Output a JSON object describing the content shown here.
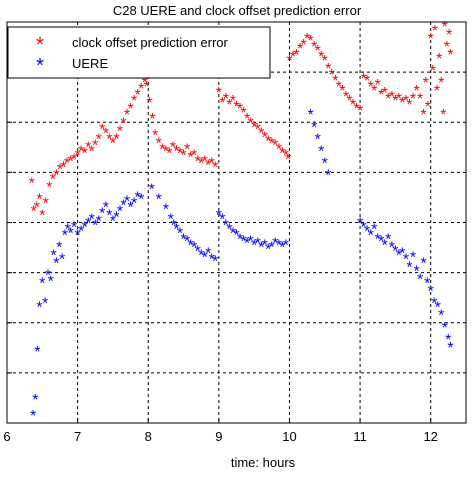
{
  "chart_data": {
    "type": "scatter",
    "title": "C28 UERE and clock offset prediction error",
    "xlabel": "time: hours",
    "ylabel": "",
    "xlim": [
      6,
      12.5
    ],
    "x_ticks": [
      "6",
      "7",
      "8",
      "9",
      "10",
      "11",
      "12"
    ],
    "y_gridlines": 8,
    "grid": true,
    "legend_position": "top-left",
    "marker": "*",
    "series": [
      {
        "name": "clock offset prediction error",
        "color": "#ff0000",
        "points": [
          [
            6.35,
            6.0
          ],
          [
            6.38,
            5.3
          ],
          [
            6.42,
            5.4
          ],
          [
            6.46,
            5.6
          ],
          [
            6.5,
            5.2
          ],
          [
            6.55,
            5.5
          ],
          [
            6.6,
            5.9
          ],
          [
            6.65,
            6.1
          ],
          [
            6.7,
            6.2
          ],
          [
            6.75,
            6.35
          ],
          [
            6.8,
            6.4
          ],
          [
            6.85,
            6.5
          ],
          [
            6.9,
            6.55
          ],
          [
            6.95,
            6.6
          ],
          [
            7.0,
            6.7
          ],
          [
            7.05,
            6.8
          ],
          [
            7.1,
            6.75
          ],
          [
            7.15,
            6.9
          ],
          [
            7.2,
            6.8
          ],
          [
            7.25,
            6.95
          ],
          [
            7.3,
            7.1
          ],
          [
            7.35,
            7.35
          ],
          [
            7.4,
            7.25
          ],
          [
            7.45,
            7.1
          ],
          [
            7.5,
            7.0
          ],
          [
            7.55,
            7.1
          ],
          [
            7.6,
            7.3
          ],
          [
            7.65,
            7.5
          ],
          [
            7.7,
            7.7
          ],
          [
            7.75,
            7.85
          ],
          [
            7.8,
            8.05
          ],
          [
            7.85,
            8.2
          ],
          [
            7.9,
            8.35
          ],
          [
            7.95,
            8.5
          ],
          [
            7.98,
            8.4
          ],
          [
            8.02,
            8.0
          ],
          [
            8.06,
            7.6
          ],
          [
            8.1,
            7.2
          ],
          [
            8.15,
            7.0
          ],
          [
            8.2,
            6.85
          ],
          [
            8.25,
            6.8
          ],
          [
            8.3,
            6.75
          ],
          [
            8.35,
            6.9
          ],
          [
            8.4,
            6.8
          ],
          [
            8.45,
            6.75
          ],
          [
            8.5,
            6.7
          ],
          [
            8.55,
            6.85
          ],
          [
            8.6,
            6.65
          ],
          [
            8.65,
            6.7
          ],
          [
            8.7,
            6.55
          ],
          [
            8.75,
            6.5
          ],
          [
            8.8,
            6.55
          ],
          [
            8.85,
            6.45
          ],
          [
            8.9,
            6.5
          ],
          [
            8.95,
            6.4
          ],
          [
            9.0,
            8.25
          ],
          [
            9.05,
            8.0
          ],
          [
            9.1,
            8.1
          ],
          [
            9.15,
            7.95
          ],
          [
            9.2,
            8.05
          ],
          [
            9.25,
            7.9
          ],
          [
            9.3,
            7.85
          ],
          [
            9.35,
            7.75
          ],
          [
            9.4,
            7.6
          ],
          [
            9.45,
            7.5
          ],
          [
            9.5,
            7.4
          ],
          [
            9.55,
            7.35
          ],
          [
            9.6,
            7.25
          ],
          [
            9.65,
            7.15
          ],
          [
            9.7,
            7.05
          ],
          [
            9.75,
            7.0
          ],
          [
            9.8,
            6.95
          ],
          [
            9.85,
            6.85
          ],
          [
            9.9,
            6.75
          ],
          [
            9.95,
            6.7
          ],
          [
            9.98,
            6.6
          ],
          [
            10.0,
            9.05
          ],
          [
            10.05,
            9.15
          ],
          [
            10.1,
            9.2
          ],
          [
            10.15,
            9.35
          ],
          [
            10.2,
            9.45
          ],
          [
            10.25,
            9.6
          ],
          [
            10.3,
            9.55
          ],
          [
            10.35,
            9.4
          ],
          [
            10.4,
            9.3
          ],
          [
            10.45,
            9.15
          ],
          [
            10.5,
            9.05
          ],
          [
            10.55,
            8.85
          ],
          [
            10.6,
            8.7
          ],
          [
            10.65,
            8.55
          ],
          [
            10.7,
            8.4
          ],
          [
            10.75,
            8.3
          ],
          [
            10.8,
            8.15
          ],
          [
            10.85,
            8.05
          ],
          [
            10.9,
            7.95
          ],
          [
            10.95,
            7.85
          ],
          [
            11.0,
            7.8
          ],
          [
            11.05,
            8.6
          ],
          [
            11.1,
            8.55
          ],
          [
            11.15,
            8.4
          ],
          [
            11.2,
            8.3
          ],
          [
            11.25,
            8.45
          ],
          [
            11.3,
            8.2
          ],
          [
            11.35,
            8.25
          ],
          [
            11.4,
            8.1
          ],
          [
            11.45,
            8.15
          ],
          [
            11.5,
            8.05
          ],
          [
            11.55,
            8.1
          ],
          [
            11.6,
            8.0
          ],
          [
            11.65,
            8.05
          ],
          [
            11.7,
            7.95
          ],
          [
            11.75,
            8.1
          ],
          [
            11.8,
            8.3
          ],
          [
            11.85,
            8.1
          ],
          [
            11.9,
            7.7
          ],
          [
            11.93,
            8.5
          ],
          [
            11.96,
            7.9
          ],
          [
            12.0,
            9.6
          ],
          [
            12.03,
            8.8
          ],
          [
            12.06,
            9.8
          ],
          [
            12.09,
            8.3
          ],
          [
            12.12,
            9.1
          ],
          [
            12.15,
            8.5
          ],
          [
            12.18,
            7.7
          ],
          [
            12.2,
            9.9
          ],
          [
            12.23,
            9.4
          ],
          [
            12.26,
            9.7
          ],
          [
            12.28,
            9.2
          ]
        ]
      },
      {
        "name": "UERE",
        "color": "#0000ff",
        "points": [
          [
            6.37,
            0.2
          ],
          [
            6.4,
            0.6
          ],
          [
            6.43,
            1.8
          ],
          [
            6.46,
            2.9
          ],
          [
            6.5,
            3.5
          ],
          [
            6.54,
            3.0
          ],
          [
            6.58,
            3.7
          ],
          [
            6.62,
            3.55
          ],
          [
            6.66,
            4.2
          ],
          [
            6.7,
            4.0
          ],
          [
            6.74,
            4.4
          ],
          [
            6.78,
            4.1
          ],
          [
            6.82,
            4.7
          ],
          [
            6.86,
            4.85
          ],
          [
            6.9,
            4.75
          ],
          [
            6.95,
            4.9
          ],
          [
            7.0,
            4.7
          ],
          [
            7.05,
            4.8
          ],
          [
            7.1,
            4.9
          ],
          [
            7.15,
            5.0
          ],
          [
            7.2,
            5.1
          ],
          [
            7.25,
            4.95
          ],
          [
            7.3,
            5.05
          ],
          [
            7.35,
            5.25
          ],
          [
            7.4,
            5.4
          ],
          [
            7.45,
            5.2
          ],
          [
            7.5,
            5.05
          ],
          [
            7.55,
            5.15
          ],
          [
            7.6,
            5.3
          ],
          [
            7.65,
            5.45
          ],
          [
            7.7,
            5.55
          ],
          [
            7.75,
            5.4
          ],
          [
            7.8,
            5.5
          ],
          [
            7.85,
            5.65
          ],
          [
            7.9,
            5.6
          ],
          [
            8.05,
            5.85
          ],
          [
            8.15,
            5.6
          ],
          [
            8.25,
            5.35
          ],
          [
            8.32,
            5.1
          ],
          [
            8.36,
            4.95
          ],
          [
            8.4,
            4.85
          ],
          [
            8.45,
            4.75
          ],
          [
            8.5,
            4.6
          ],
          [
            8.55,
            4.55
          ],
          [
            8.6,
            4.45
          ],
          [
            8.65,
            4.4
          ],
          [
            8.7,
            4.3
          ],
          [
            8.75,
            4.2
          ],
          [
            8.8,
            4.15
          ],
          [
            8.85,
            4.25
          ],
          [
            8.9,
            4.1
          ],
          [
            8.95,
            4.05
          ],
          [
            9.0,
            5.2
          ],
          [
            9.05,
            5.1
          ],
          [
            9.1,
            4.95
          ],
          [
            9.15,
            4.85
          ],
          [
            9.2,
            4.75
          ],
          [
            9.25,
            4.7
          ],
          [
            9.3,
            4.6
          ],
          [
            9.35,
            4.55
          ],
          [
            9.4,
            4.5
          ],
          [
            9.45,
            4.55
          ],
          [
            9.5,
            4.45
          ],
          [
            9.55,
            4.5
          ],
          [
            9.6,
            4.4
          ],
          [
            9.65,
            4.45
          ],
          [
            9.7,
            4.35
          ],
          [
            9.75,
            4.4
          ],
          [
            9.8,
            4.5
          ],
          [
            9.85,
            4.45
          ],
          [
            9.9,
            4.4
          ],
          [
            9.95,
            4.45
          ],
          [
            10.3,
            7.7
          ],
          [
            10.35,
            7.4
          ],
          [
            10.4,
            7.1
          ],
          [
            10.45,
            6.8
          ],
          [
            10.5,
            6.5
          ],
          [
            10.55,
            6.2
          ],
          [
            11.0,
            5.0
          ],
          [
            11.05,
            4.9
          ],
          [
            11.1,
            4.8
          ],
          [
            11.15,
            4.7
          ],
          [
            11.2,
            4.85
          ],
          [
            11.25,
            4.6
          ],
          [
            11.3,
            4.55
          ],
          [
            11.35,
            4.45
          ],
          [
            11.4,
            4.6
          ],
          [
            11.45,
            4.4
          ],
          [
            11.5,
            4.3
          ],
          [
            11.55,
            4.2
          ],
          [
            11.6,
            4.25
          ],
          [
            11.65,
            4.1
          ],
          [
            11.7,
            3.9
          ],
          [
            11.75,
            4.15
          ],
          [
            11.8,
            3.8
          ],
          [
            11.85,
            3.6
          ],
          [
            11.9,
            4.0
          ],
          [
            11.95,
            3.5
          ],
          [
            12.0,
            3.3
          ],
          [
            12.05,
            3.0
          ],
          [
            12.1,
            2.9
          ],
          [
            12.15,
            2.7
          ],
          [
            12.2,
            2.4
          ],
          [
            12.25,
            2.1
          ],
          [
            12.28,
            1.9
          ]
        ]
      }
    ]
  }
}
